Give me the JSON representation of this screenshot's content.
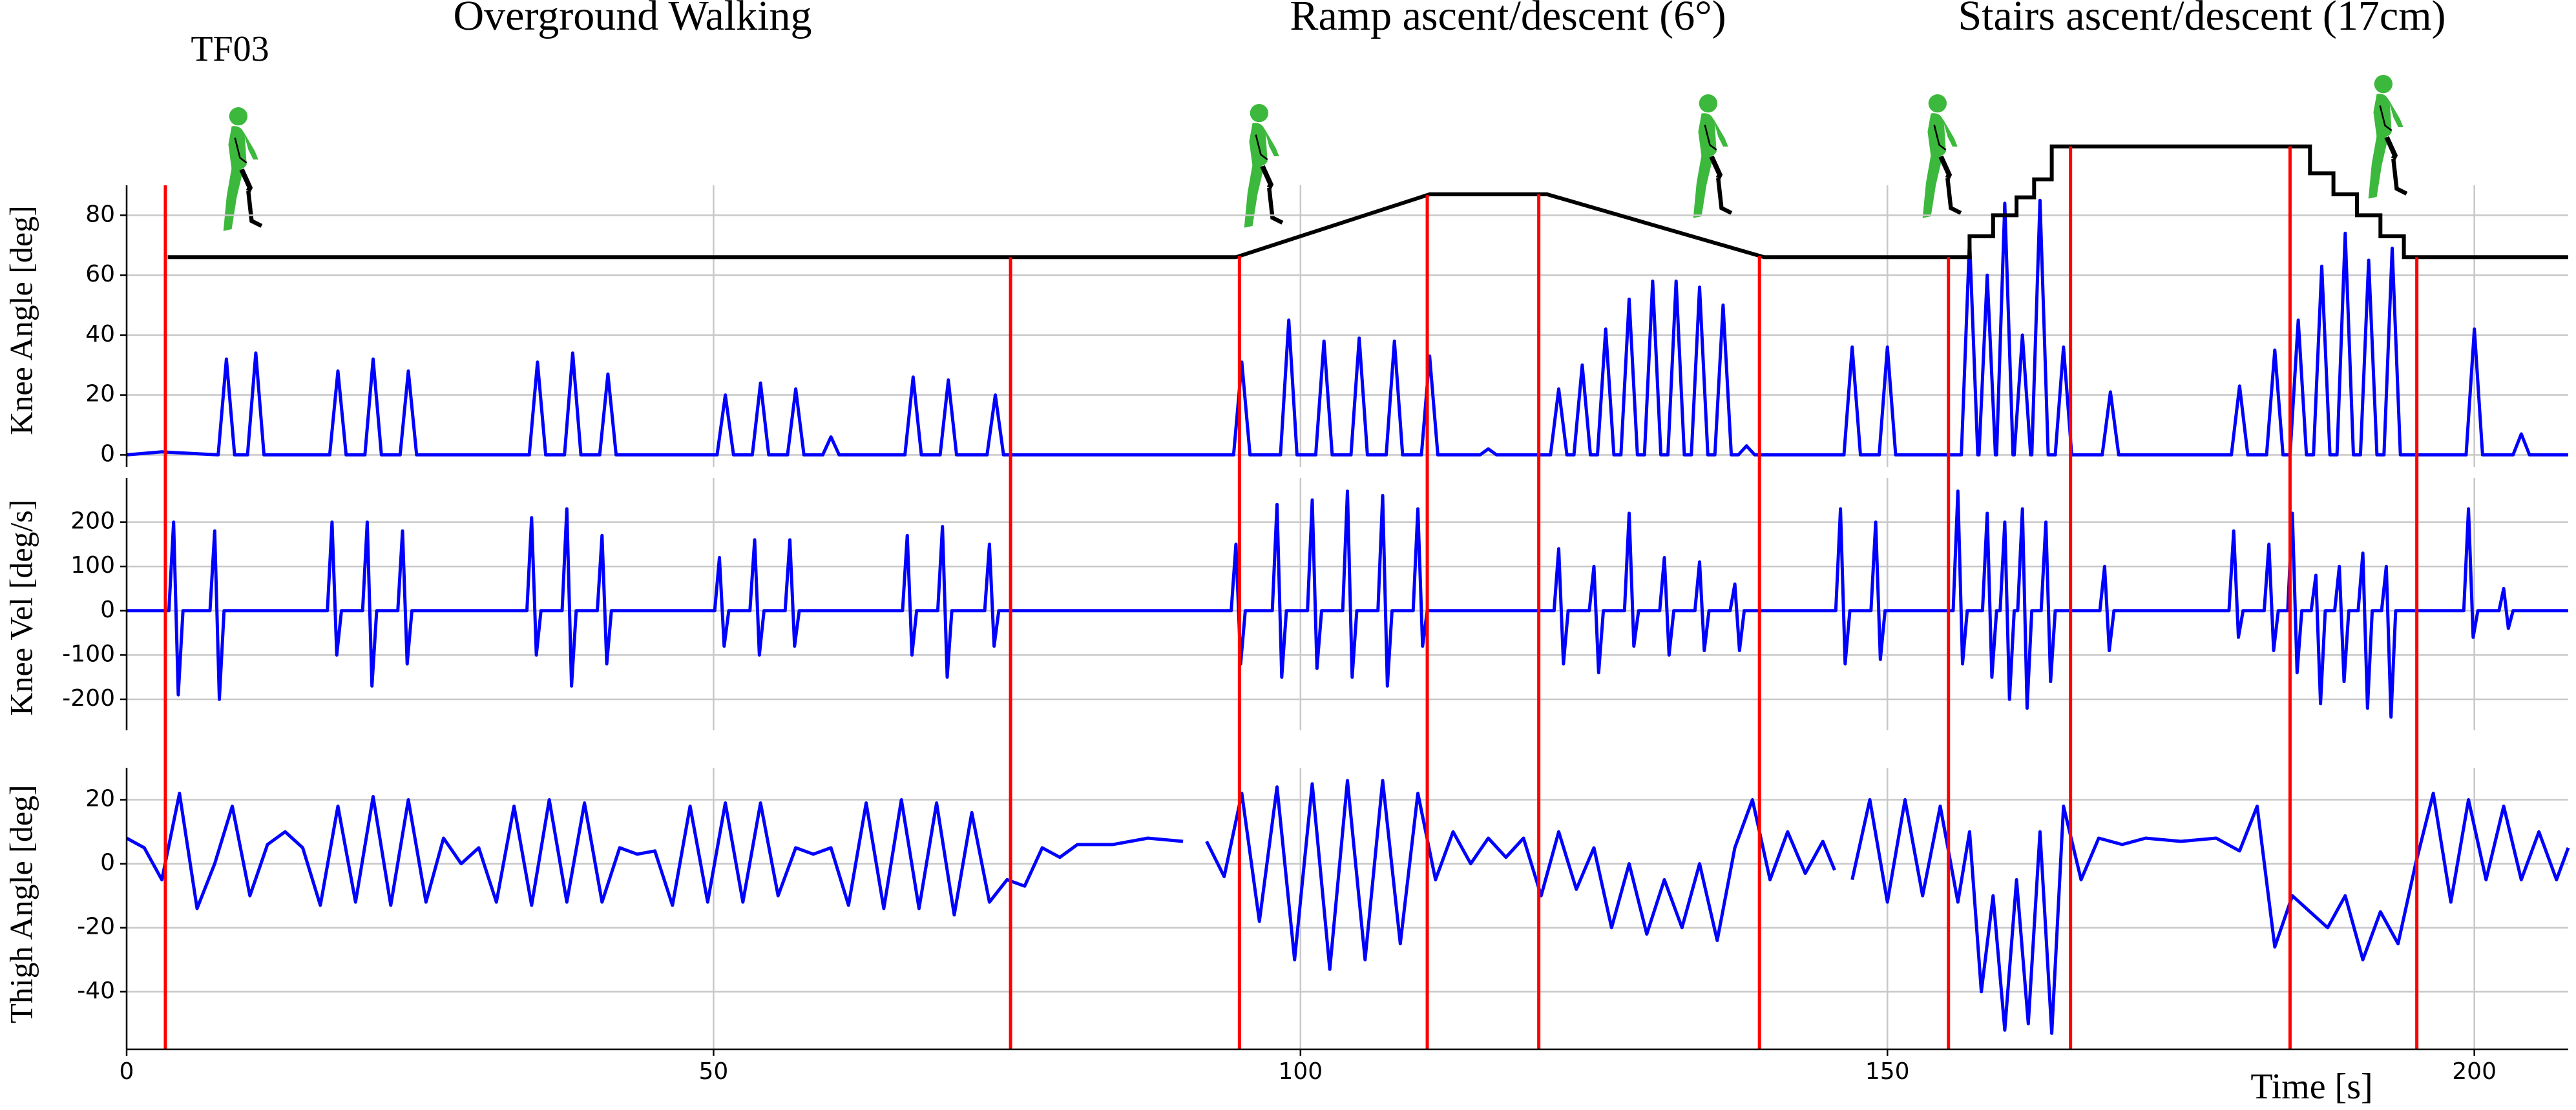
{
  "chart_data": [
    {
      "type": "line",
      "subject": "TF03",
      "annotations": [
        "Overground Walking",
        "Ramp ascent/descent (6°)",
        "Stairs ascent/descent (17cm)"
      ],
      "ylabel": "Knee Angle [deg]",
      "ylim": [
        -4,
        90
      ],
      "yticks": [
        0,
        20,
        40,
        60,
        80
      ],
      "grid": true,
      "x": [
        0,
        3,
        7.8,
        8.5,
        9.2,
        10.3,
        11,
        11.7,
        17.3,
        18,
        18.7,
        20.3,
        21,
        21.7,
        23.3,
        24,
        24.7,
        34.3,
        35,
        35.7,
        37.3,
        38,
        38.7,
        40.3,
        41,
        41.7,
        50.3,
        51,
        51.7,
        53.3,
        54,
        54.7,
        56.3,
        57,
        57.7,
        59.3,
        60,
        60.7,
        66.3,
        67,
        67.7,
        69.3,
        70,
        70.7,
        73.3,
        74,
        74.7,
        94.3,
        95,
        95.7,
        98.3,
        99,
        99.7,
        101.3,
        102,
        102.7,
        104.3,
        105,
        105.7,
        107.3,
        108,
        108.7,
        110.3,
        111,
        111.7,
        115.3,
        116,
        116.7,
        121.3,
        122,
        122.7,
        123.3,
        124,
        124.7,
        125.3,
        126,
        126.7,
        127.3,
        128,
        128.7,
        129.3,
        130,
        130.7,
        131.3,
        132,
        132.7,
        133.3,
        134,
        134.7,
        135.3,
        136,
        136.7,
        137.3,
        138,
        138.7,
        146.3,
        147,
        147.7,
        149.3,
        150,
        150.7,
        156.3,
        157,
        157.7,
        157.8,
        158.5,
        159.2,
        159.3,
        160,
        160.7,
        160.8,
        161.5,
        162.2,
        162.3,
        163,
        163.7,
        164.3,
        165,
        165.7,
        168.3,
        169,
        169.7,
        179.3,
        180,
        180.7,
        182.3,
        183,
        183.7,
        184.3,
        185,
        185.7,
        186.3,
        187,
        187.7,
        188.3,
        189,
        189.7,
        190.3,
        191,
        191.7,
        192.3,
        193,
        193.7,
        199.3,
        200,
        200.7,
        203.3,
        204,
        204.7,
        208
      ],
      "series": [
        {
          "color": "#0000ff",
          "values": [
            0,
            1,
            0,
            32,
            0,
            0,
            34,
            0,
            0,
            28,
            0,
            0,
            32,
            0,
            0,
            28,
            0,
            0,
            31,
            0,
            0,
            34,
            0,
            0,
            27,
            0,
            0,
            20,
            0,
            0,
            24,
            0,
            0,
            22,
            0,
            0,
            6,
            0,
            0,
            26,
            0,
            0,
            25,
            0,
            0,
            20,
            0,
            0,
            31,
            0,
            0,
            45,
            0,
            0,
            38,
            0,
            0,
            39,
            0,
            0,
            38,
            0,
            0,
            33,
            0,
            0,
            2,
            0,
            0,
            22,
            0,
            0,
            30,
            0,
            0,
            42,
            0,
            0,
            52,
            0,
            0,
            58,
            0,
            0,
            58,
            0,
            0,
            56,
            0,
            0,
            50,
            0,
            0,
            3,
            0,
            0,
            36,
            0,
            0,
            36,
            0,
            0,
            72,
            0,
            0,
            60,
            0,
            0,
            84,
            0,
            0,
            40,
            0,
            0,
            85,
            0,
            0,
            36,
            0,
            0,
            21,
            0,
            0,
            23,
            0,
            0,
            35,
            0,
            0,
            45,
            0,
            0,
            63,
            0,
            0,
            74,
            0,
            0,
            65,
            0,
            0,
            69,
            0,
            0,
            42,
            0,
            0,
            7,
            0,
            0
          ]
        }
      ],
      "profile": {
        "color": "#000000",
        "x": [
          3.5,
          94.5,
          111,
          121,
          139.5,
          155.5,
          157,
          157,
          159,
          159,
          161,
          161,
          162.5,
          162.5,
          164,
          164,
          186,
          186,
          188,
          188,
          190,
          190,
          192,
          192,
          194,
          194,
          208
        ],
        "values": [
          66,
          66,
          87,
          87,
          66,
          66,
          66,
          73,
          73,
          80,
          80,
          86,
          86,
          92,
          92,
          103,
          103,
          94,
          94,
          87,
          87,
          80,
          80,
          73,
          73,
          66,
          66
        ]
      },
      "events": {
        "color": "#ff0000",
        "x": [
          3.3,
          75.3,
          94.8,
          110.8,
          120.3,
          139.1,
          155.2,
          165.6,
          184.3,
          195.1
        ]
      }
    },
    {
      "type": "line",
      "ylabel": "Knee Vel [deg/s]",
      "ylim": [
        -270,
        300
      ],
      "yticks": [
        -200,
        -100,
        0,
        100,
        200
      ],
      "grid": true,
      "x": [
        0,
        3.6,
        4,
        4.4,
        4.8,
        7.1,
        7.5,
        7.9,
        8.3,
        17.1,
        17.5,
        17.9,
        18.3,
        20.1,
        20.5,
        20.9,
        21.3,
        23.1,
        23.5,
        23.9,
        24.3,
        34.1,
        34.5,
        34.9,
        35.3,
        37.1,
        37.5,
        37.9,
        38.3,
        40.1,
        40.5,
        40.9,
        41.3,
        50.1,
        50.5,
        50.9,
        51.3,
        53.1,
        53.5,
        53.9,
        54.3,
        56.1,
        56.5,
        56.9,
        57.3,
        66.1,
        66.5,
        66.9,
        67.3,
        69.1,
        69.5,
        69.9,
        70.3,
        73.1,
        73.5,
        73.9,
        74.3,
        94.1,
        94.5,
        94.9,
        95.3,
        97.6,
        98,
        98.4,
        98.8,
        100.6,
        101,
        101.4,
        101.8,
        103.6,
        104,
        104.4,
        104.8,
        106.6,
        107,
        107.4,
        107.8,
        109.6,
        110,
        110.4,
        110.8,
        121.6,
        122,
        122.4,
        122.8,
        124.6,
        125,
        125.4,
        125.8,
        127.6,
        128,
        128.4,
        128.8,
        130.6,
        131,
        131.4,
        131.8,
        133.6,
        134,
        134.4,
        134.8,
        136.6,
        137,
        137.4,
        137.8,
        145.6,
        146,
        146.4,
        146.8,
        148.6,
        149,
        149.4,
        149.8,
        155.6,
        156,
        156.4,
        156.8,
        158.1,
        158.5,
        158.9,
        159.3,
        159.6,
        160,
        160.4,
        160.8,
        161.1,
        161.5,
        161.9,
        162.3,
        163.1,
        163.5,
        163.9,
        164.3,
        168.1,
        168.5,
        168.9,
        169.3,
        179.1,
        179.5,
        179.9,
        180.3,
        182.1,
        182.5,
        182.9,
        183.3,
        184.1,
        184.5,
        184.9,
        185.3,
        186.1,
        186.5,
        186.9,
        187.3,
        188.1,
        188.5,
        188.9,
        189.3,
        190.1,
        190.5,
        190.9,
        191.3,
        192.1,
        192.5,
        192.9,
        193.3,
        199.1,
        199.5,
        199.9,
        200.3,
        202.1,
        202.5,
        202.9,
        203.3,
        208
      ],
      "series": [
        {
          "color": "#0000ff",
          "values": [
            0,
            0,
            200,
            -190,
            0,
            0,
            180,
            -200,
            0,
            0,
            200,
            -100,
            0,
            0,
            200,
            -170,
            0,
            0,
            180,
            -120,
            0,
            0,
            210,
            -100,
            0,
            0,
            230,
            -170,
            0,
            0,
            170,
            -120,
            0,
            0,
            120,
            -80,
            0,
            0,
            160,
            -100,
            0,
            0,
            160,
            -80,
            0,
            0,
            170,
            -100,
            0,
            0,
            190,
            -150,
            0,
            0,
            150,
            -80,
            0,
            0,
            150,
            -120,
            0,
            0,
            240,
            -150,
            0,
            0,
            250,
            -130,
            0,
            0,
            270,
            -150,
            0,
            0,
            260,
            -170,
            0,
            0,
            230,
            -80,
            0,
            0,
            140,
            -120,
            0,
            0,
            100,
            -140,
            0,
            0,
            220,
            -80,
            0,
            0,
            120,
            -100,
            0,
            0,
            110,
            -90,
            0,
            0,
            60,
            -90,
            0,
            0,
            230,
            -120,
            0,
            0,
            200,
            -110,
            0,
            0,
            270,
            -120,
            0,
            0,
            220,
            -150,
            0,
            0,
            200,
            -200,
            0,
            0,
            230,
            -220,
            0,
            0,
            200,
            -160,
            0,
            0,
            100,
            -90,
            0,
            0,
            180,
            -60,
            0,
            0,
            150,
            -90,
            0,
            0,
            220,
            -140,
            0,
            0,
            80,
            -210,
            0,
            0,
            100,
            -160,
            0,
            0,
            130,
            -220,
            0,
            0,
            100,
            -240,
            0,
            0,
            230,
            -60,
            0,
            0,
            50,
            -40,
            0,
            0
          ]
        }
      ]
    },
    {
      "type": "line",
      "ylabel": "Thigh Angle [deg]",
      "xlabel": "Time [s]",
      "ylim": [
        -58,
        30
      ],
      "yticks": [
        -40,
        -20,
        0,
        20
      ],
      "grid": true,
      "xlim": [
        0,
        208
      ],
      "xticks": [
        0,
        50,
        100,
        150,
        200
      ],
      "x": [
        0,
        1.5,
        3,
        4.5,
        6,
        7.5,
        9,
        10.5,
        12,
        13.5,
        15,
        16.5,
        18,
        19.5,
        21,
        22.5,
        24,
        25.5,
        27,
        28.5,
        30,
        31.5,
        33,
        34.5,
        36,
        37.5,
        39,
        40.5,
        42,
        43.5,
        45,
        46.5,
        48,
        49.5,
        51,
        52.5,
        54,
        55.5,
        57,
        58.5,
        60,
        61.5,
        63,
        64.5,
        66,
        67.5,
        69,
        70.5,
        72,
        73.5,
        75,
        76.5,
        78,
        79.5,
        81,
        84,
        87,
        90,
        91,
        92,
        93.5,
        95,
        96.5,
        98,
        99.5,
        101,
        102.5,
        104,
        105.5,
        107,
        108.5,
        110,
        111.5,
        113,
        114.5,
        116,
        117.5,
        119,
        120.5,
        122,
        123.5,
        125,
        126.5,
        128,
        129.5,
        131,
        132.5,
        134,
        135.5,
        137,
        138.5,
        140,
        141.5,
        143,
        144.5,
        145.5,
        146,
        147,
        148.5,
        150,
        151.5,
        153,
        154.5,
        156,
        157,
        158,
        159,
        160,
        161,
        162,
        163,
        164,
        165,
        166.5,
        168,
        170,
        172,
        175,
        178,
        180,
        181.5,
        183,
        184.5,
        186,
        187.5,
        189,
        190.5,
        192,
        193.5,
        195,
        196.5,
        198,
        199.5,
        201,
        202.5,
        204,
        205.5,
        207,
        208
      ],
      "series": [
        {
          "color": "#0000ff",
          "values": [
            8,
            5,
            -5,
            22,
            -14,
            0,
            18,
            -10,
            6,
            10,
            5,
            -13,
            18,
            -12,
            21,
            -13,
            20,
            -12,
            8,
            0,
            5,
            -12,
            18,
            -13,
            20,
            -12,
            19,
            -12,
            5,
            3,
            4,
            -13,
            18,
            -12,
            19,
            -12,
            19,
            -10,
            5,
            3,
            5,
            -13,
            19,
            -14,
            20,
            -14,
            19,
            -16,
            16,
            -12,
            -5,
            -7,
            5,
            2,
            6,
            6,
            8,
            7,
            null,
            7,
            -4,
            22,
            -18,
            24,
            -30,
            25,
            -33,
            26,
            -30,
            26,
            -25,
            22,
            -5,
            10,
            0,
            8,
            2,
            8,
            -10,
            10,
            -8,
            5,
            -20,
            0,
            -22,
            -5,
            -20,
            0,
            -24,
            5,
            20,
            -5,
            10,
            -3,
            7,
            -2,
            null,
            -5,
            20,
            -12,
            20,
            -10,
            18,
            -12,
            10,
            -40,
            -10,
            -52,
            -5,
            -50,
            10,
            -53,
            18,
            -5,
            8,
            6,
            8,
            7,
            8,
            4,
            18,
            -26,
            -10,
            -15,
            -20,
            -10,
            -30,
            -15,
            -25,
            0,
            22,
            -12,
            20,
            -5,
            18,
            -5,
            10,
            -5,
            5
          ]
        }
      ]
    }
  ]
}
